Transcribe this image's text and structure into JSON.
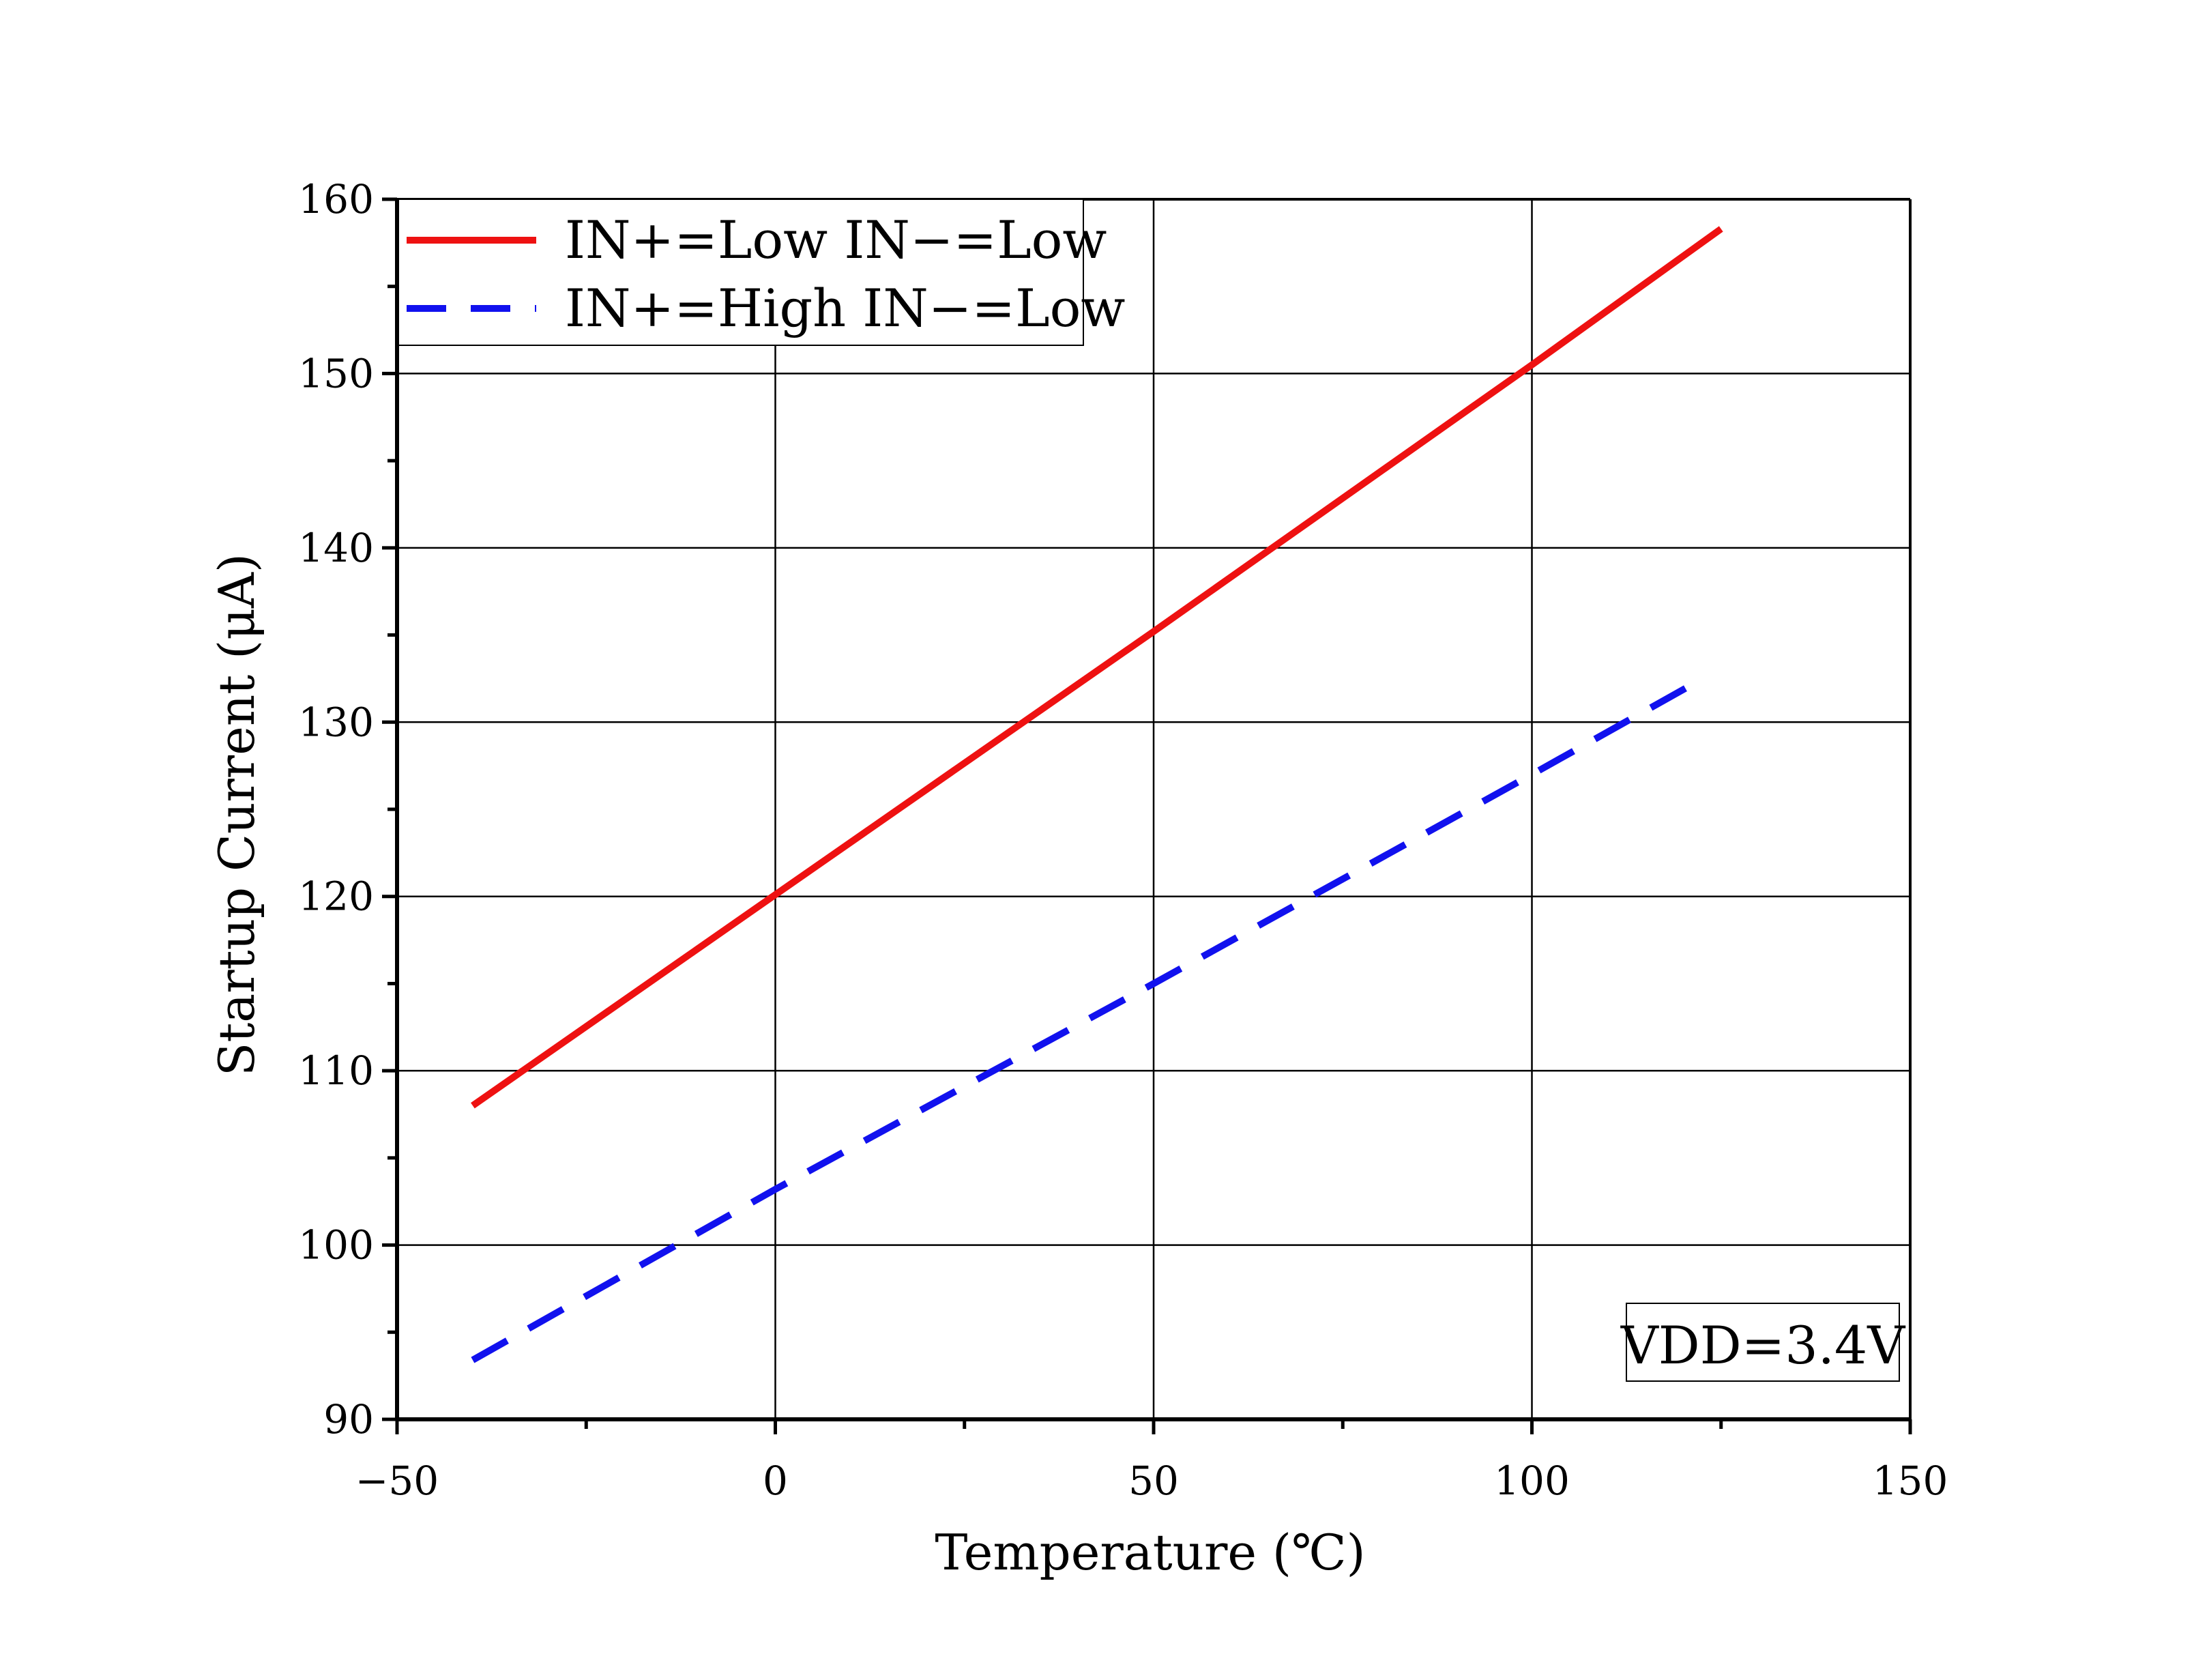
{
  "chart_data": {
    "type": "line",
    "title": "",
    "xlabel": "Temperature (℃)",
    "ylabel": "Startup Current (μA)",
    "xlim": [
      -50,
      150
    ],
    "ylim": [
      90,
      160
    ],
    "x_ticks": [
      -50,
      0,
      50,
      100,
      150
    ],
    "x_tick_labels": [
      "−50",
      "0",
      "50",
      "100",
      "150"
    ],
    "y_ticks": [
      90,
      100,
      110,
      120,
      130,
      140,
      150,
      160
    ],
    "y_tick_labels": [
      "90",
      "100",
      "110",
      "120",
      "130",
      "140",
      "150",
      "160"
    ],
    "grid": true,
    "legend_position": "top-left",
    "series": [
      {
        "name": "IN+=Low IN−=Low",
        "line_style": "solid",
        "color": "#ee1111",
        "x": [
          -40,
          0,
          50,
          100,
          125
        ],
        "y": [
          108.0,
          120.1,
          135.2,
          150.5,
          158.3
        ]
      },
      {
        "name": "IN+=High IN−=Low",
        "line_style": "dashed",
        "color": "#1111ee",
        "x": [
          -40,
          0,
          50,
          100,
          123
        ],
        "y": [
          93.4,
          103.2,
          115.0,
          127.0,
          132.6
        ]
      }
    ],
    "annotations": [
      {
        "text": "VDD=3.4V",
        "position": "bottom-right"
      }
    ]
  }
}
